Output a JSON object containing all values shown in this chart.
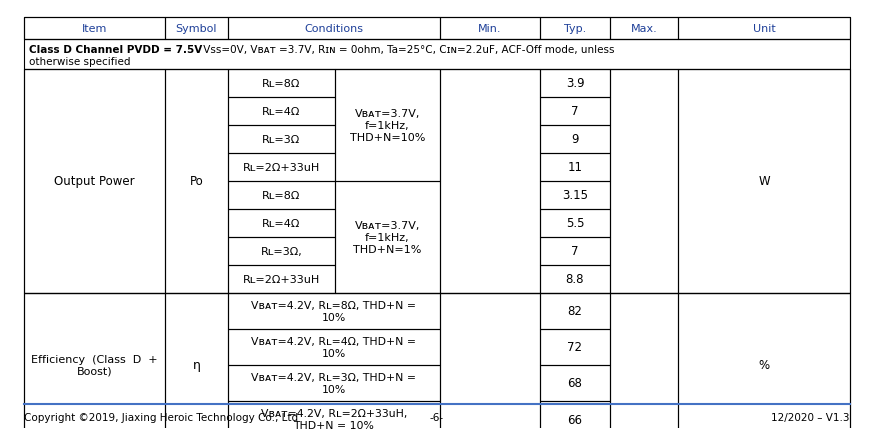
{
  "footer_left": "Copyright ©2019, Jiaxing Heroic Technology Co., Ltd",
  "footer_center": "-6-",
  "footer_right": "12/2020 – V1.3",
  "header_cols": [
    "Item",
    "Symbol",
    "Conditions",
    "Min.",
    "Typ.",
    "Max.",
    "Unit"
  ],
  "header_text_color": "#1f4099",
  "body_text_color": "#000000",
  "border_color": "#000000",
  "footer_line_color": "#4472c4",
  "op_rows_thdn10": [
    {
      "rl": "Rʟ=8Ω",
      "typ": "3.9"
    },
    {
      "rl": "Rʟ=4Ω",
      "typ": "7"
    },
    {
      "rl": "Rʟ=3Ω",
      "typ": "9"
    },
    {
      "rl": "Rʟ=2Ω+33uH",
      "typ": "11"
    }
  ],
  "op_rows_thdn1": [
    {
      "rl": "Rʟ=8Ω",
      "typ": "3.15"
    },
    {
      "rl": "Rʟ=4Ω",
      "typ": "5.5"
    },
    {
      "rl": "Rʟ=3Ω,",
      "typ": "7"
    },
    {
      "rl": "Rʟ=2Ω+33uH",
      "typ": "8.8"
    }
  ],
  "eff_rows": [
    {
      "cond": "Vʙᴀᴛ=4.2V, Rʟ=8Ω, THD+N =\n10%",
      "typ": "82"
    },
    {
      "cond": "Vʙᴀᴛ=4.2V, Rʟ=4Ω, THD+N =\n10%",
      "typ": "72"
    },
    {
      "cond": "Vʙᴀᴛ=4.2V, Rʟ=3Ω, THD+N =\n10%",
      "typ": "68"
    },
    {
      "cond": "Vʙᴀᴛ=4.2V, Rʟ=2Ω+33uH,\nTHD+N = 10%",
      "typ": "66"
    }
  ]
}
